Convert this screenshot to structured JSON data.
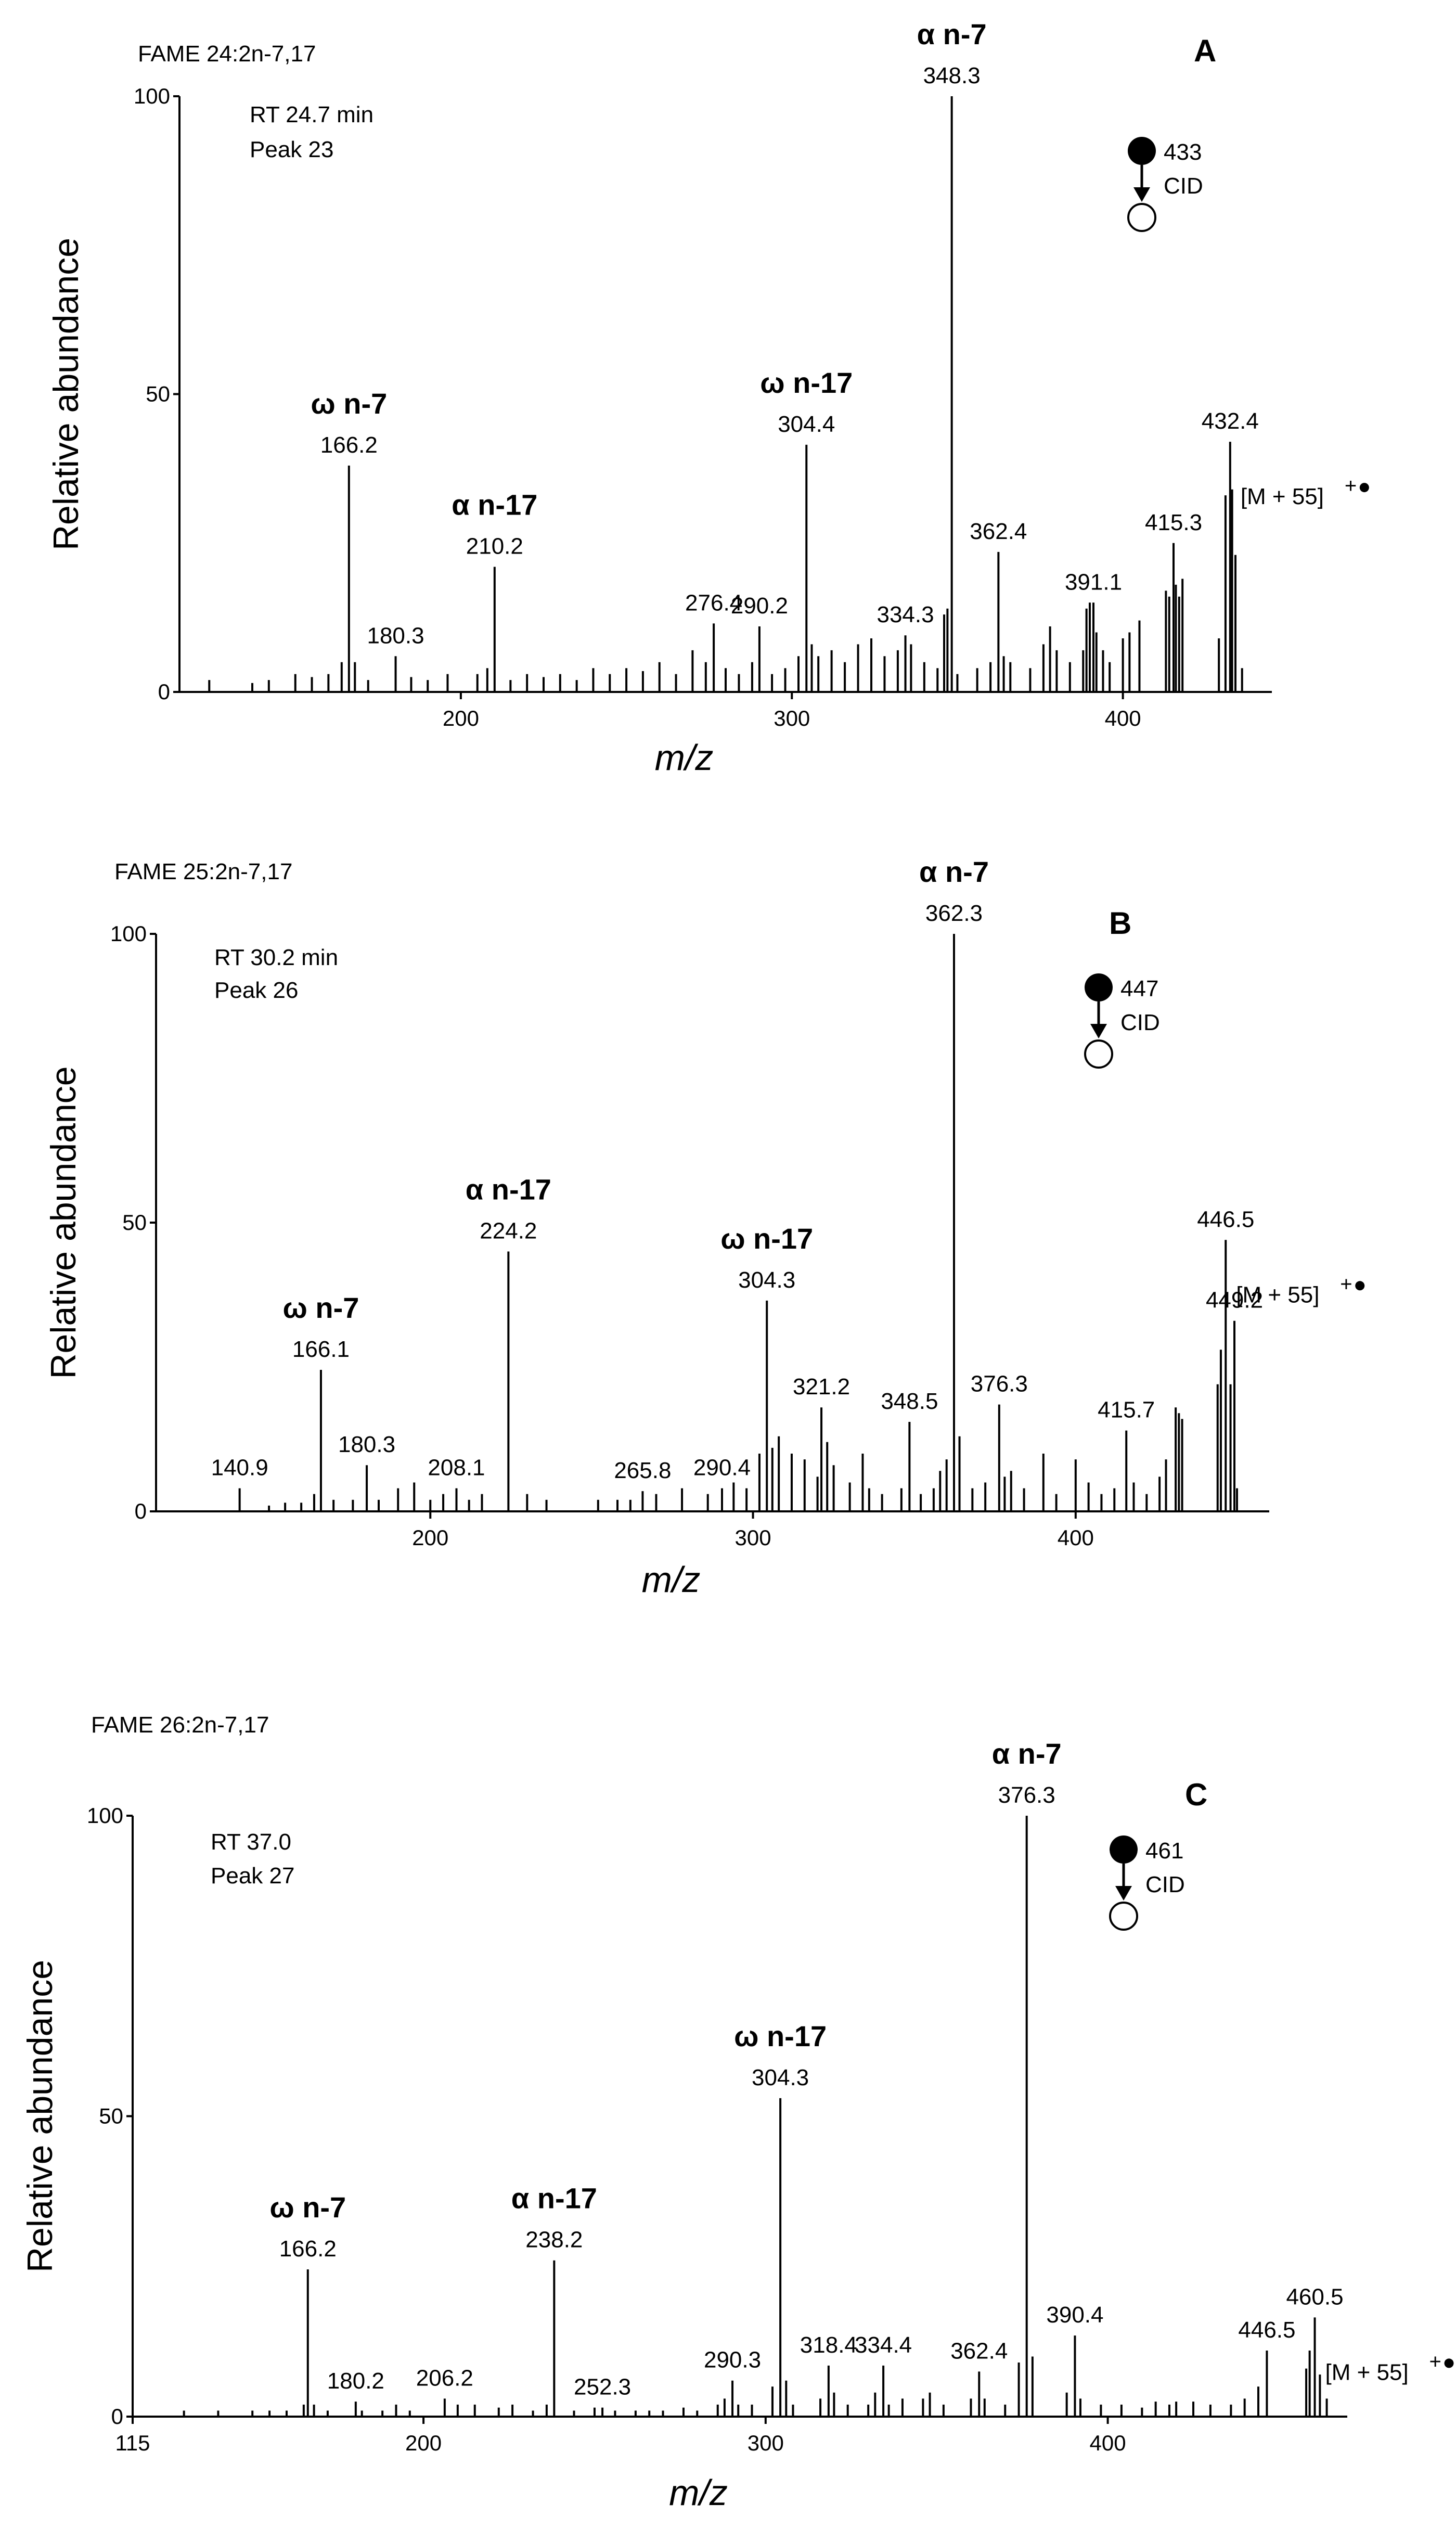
{
  "colors": {
    "ink": "#000000",
    "background": "#ffffff"
  },
  "chart_data": [
    {
      "type": "bar",
      "panel": "A",
      "compound": "FAME 24:2n-7,17",
      "rt": "RT 24.7 min",
      "peak": "Peak 23",
      "precursor": "433",
      "cid": "CID",
      "xlabel": "m/z",
      "ylabel": "Relative abundance",
      "xlim": [
        115,
        445
      ],
      "ylim": [
        0,
        100
      ],
      "xticks": [
        "200",
        "300",
        "400"
      ],
      "yticks": [
        "0",
        "50",
        "100"
      ],
      "ion_label": "[M + 55]",
      "ion_charge": "+",
      "major_peaks": [
        {
          "mz": 166.2,
          "abundance": 38,
          "label": "166.2",
          "annotation": "ω n-7"
        },
        {
          "mz": 180.3,
          "abundance": 6,
          "label": "180.3"
        },
        {
          "mz": 210.2,
          "abundance": 21,
          "label": "210.2",
          "annotation": "α n-17"
        },
        {
          "mz": 276.4,
          "abundance": 11.5,
          "label": "276.4"
        },
        {
          "mz": 290.2,
          "abundance": 11,
          "label": "290.2"
        },
        {
          "mz": 304.4,
          "abundance": 41.5,
          "label": "304.4",
          "annotation": "ω n-17"
        },
        {
          "mz": 334.3,
          "abundance": 9.5,
          "label": "334.3"
        },
        {
          "mz": 348.3,
          "abundance": 100,
          "label": "348.3",
          "annotation": "α n-7"
        },
        {
          "mz": 362.4,
          "abundance": 23.5,
          "label": "362.4"
        },
        {
          "mz": 391.1,
          "abundance": 15,
          "label": "391.1"
        },
        {
          "mz": 415.3,
          "abundance": 25,
          "label": "415.3"
        },
        {
          "mz": 432.4,
          "abundance": 42,
          "label": "432.4"
        }
      ],
      "minor_peaks": [
        [
          124,
          2
        ],
        [
          137,
          1.5
        ],
        [
          142,
          2
        ],
        [
          150,
          3
        ],
        [
          155,
          2.5
        ],
        [
          160,
          3
        ],
        [
          164,
          5
        ],
        [
          168,
          5
        ],
        [
          172,
          2
        ],
        [
          185,
          2.5
        ],
        [
          190,
          2
        ],
        [
          196,
          3
        ],
        [
          205,
          3
        ],
        [
          208,
          4
        ],
        [
          215,
          2
        ],
        [
          220,
          3
        ],
        [
          225,
          2.5
        ],
        [
          230,
          3
        ],
        [
          235,
          2
        ],
        [
          240,
          4
        ],
        [
          245,
          3
        ],
        [
          250,
          4
        ],
        [
          255,
          3.5
        ],
        [
          260,
          5
        ],
        [
          265,
          3
        ],
        [
          270,
          7
        ],
        [
          274,
          5
        ],
        [
          280,
          4
        ],
        [
          284,
          3
        ],
        [
          288,
          5
        ],
        [
          294,
          3
        ],
        [
          298,
          4
        ],
        [
          302,
          6
        ],
        [
          306,
          8
        ],
        [
          308,
          6
        ],
        [
          312,
          7
        ],
        [
          316,
          5
        ],
        [
          320,
          8
        ],
        [
          324,
          9
        ],
        [
          328,
          6
        ],
        [
          332,
          7
        ],
        [
          336,
          8
        ],
        [
          340,
          5
        ],
        [
          344,
          4
        ],
        [
          346,
          13
        ],
        [
          347,
          14
        ],
        [
          350,
          3
        ],
        [
          356,
          4
        ],
        [
          360,
          5
        ],
        [
          364,
          6
        ],
        [
          366,
          5
        ],
        [
          372,
          4
        ],
        [
          376,
          8
        ],
        [
          378,
          11
        ],
        [
          380,
          7
        ],
        [
          384,
          5
        ],
        [
          388,
          7
        ],
        [
          389,
          14
        ],
        [
          390,
          15
        ],
        [
          392,
          10
        ],
        [
          394,
          7
        ],
        [
          396,
          5
        ],
        [
          400,
          9
        ],
        [
          402,
          10
        ],
        [
          405,
          12
        ],
        [
          413,
          17
        ],
        [
          414,
          16
        ],
        [
          416,
          18
        ],
        [
          417,
          16
        ],
        [
          418,
          19
        ],
        [
          429,
          9
        ],
        [
          431,
          33
        ],
        [
          433,
          34
        ],
        [
          434,
          23
        ],
        [
          436,
          4
        ]
      ]
    },
    {
      "type": "bar",
      "panel": "B",
      "compound": "FAME 25:2n-7,17",
      "rt": "RT 30.2 min",
      "peak": "Peak 26",
      "precursor": "447",
      "cid": "CID",
      "xlabel": "m/z",
      "ylabel": "Relative abundance",
      "xlim": [
        115,
        460
      ],
      "ylim": [
        0,
        100
      ],
      "xticks": [
        "200",
        "300",
        "400"
      ],
      "yticks": [
        "0",
        "50",
        "100"
      ],
      "ion_label": "[M + 55]",
      "ion_charge": "+",
      "major_peaks": [
        {
          "mz": 140.9,
          "abundance": 4,
          "label": "140.9"
        },
        {
          "mz": 166.1,
          "abundance": 24.5,
          "label": "166.1",
          "annotation": "ω n-7"
        },
        {
          "mz": 180.3,
          "abundance": 8,
          "label": "180.3"
        },
        {
          "mz": 208.1,
          "abundance": 4,
          "label": "208.1"
        },
        {
          "mz": 224.2,
          "abundance": 45,
          "label": "224.2",
          "annotation": "α n-17"
        },
        {
          "mz": 265.8,
          "abundance": 3.5,
          "label": "265.8"
        },
        {
          "mz": 290.4,
          "abundance": 4,
          "label": "290.4"
        },
        {
          "mz": 304.3,
          "abundance": 36.5,
          "label": "304.3",
          "annotation": "ω n-17"
        },
        {
          "mz": 321.2,
          "abundance": 18,
          "label": "321.2"
        },
        {
          "mz": 348.5,
          "abundance": 15.5,
          "label": "348.5"
        },
        {
          "mz": 362.3,
          "abundance": 100,
          "label": "362.3",
          "annotation": "α n-7"
        },
        {
          "mz": 376.3,
          "abundance": 18.5,
          "label": "376.3"
        },
        {
          "mz": 415.7,
          "abundance": 14,
          "label": "415.7"
        },
        {
          "mz": 449.2,
          "abundance": 33,
          "label": "449.2"
        },
        {
          "mz": 446.5,
          "abundance": 47,
          "label": "446.5"
        }
      ],
      "minor_peaks": [
        [
          150,
          1
        ],
        [
          155,
          1.5
        ],
        [
          160,
          1.5
        ],
        [
          164,
          3
        ],
        [
          170,
          2
        ],
        [
          176,
          2
        ],
        [
          184,
          2
        ],
        [
          190,
          4
        ],
        [
          195,
          5
        ],
        [
          200,
          2
        ],
        [
          204,
          3
        ],
        [
          212,
          2
        ],
        [
          216,
          3
        ],
        [
          230,
          3
        ],
        [
          236,
          2
        ],
        [
          252,
          2
        ],
        [
          258,
          2
        ],
        [
          262,
          2
        ],
        [
          270,
          3
        ],
        [
          278,
          4
        ],
        [
          286,
          3
        ],
        [
          294,
          5
        ],
        [
          298,
          4
        ],
        [
          302,
          10
        ],
        [
          306,
          11
        ],
        [
          308,
          13
        ],
        [
          312,
          10
        ],
        [
          316,
          9
        ],
        [
          320,
          6
        ],
        [
          323,
          12
        ],
        [
          325,
          8
        ],
        [
          330,
          5
        ],
        [
          334,
          10
        ],
        [
          336,
          4
        ],
        [
          340,
          3
        ],
        [
          346,
          4
        ],
        [
          352,
          3
        ],
        [
          356,
          4
        ],
        [
          358,
          7
        ],
        [
          360,
          9
        ],
        [
          364,
          13
        ],
        [
          368,
          4
        ],
        [
          372,
          5
        ],
        [
          378,
          6
        ],
        [
          380,
          7
        ],
        [
          384,
          4
        ],
        [
          390,
          10
        ],
        [
          394,
          3
        ],
        [
          400,
          9
        ],
        [
          404,
          5
        ],
        [
          408,
          3
        ],
        [
          412,
          4
        ],
        [
          418,
          5
        ],
        [
          422,
          3
        ],
        [
          426,
          6
        ],
        [
          428,
          9
        ],
        [
          431,
          18
        ],
        [
          432,
          17
        ],
        [
          433,
          16
        ],
        [
          444,
          22
        ],
        [
          445,
          28
        ],
        [
          448,
          22
        ],
        [
          450,
          4
        ]
      ]
    },
    {
      "type": "bar",
      "panel": "C",
      "compound": "FAME 26:2n-7,17",
      "rt": "RT 37.0",
      "peak": "Peak 27",
      "precursor": "461",
      "cid": "CID",
      "xlabel": "m/z",
      "ylabel": "Relative abundance",
      "xlim": [
        115,
        470
      ],
      "ylim": [
        0,
        100
      ],
      "xticks": [
        "115",
        "200",
        "300",
        "400"
      ],
      "yticks": [
        "0",
        "50",
        "100"
      ],
      "ion_label": "[M + 55]",
      "ion_charge": "+",
      "major_peaks": [
        {
          "mz": 166.2,
          "abundance": 24.5,
          "label": "166.2",
          "annotation": "ω n-7"
        },
        {
          "mz": 180.2,
          "abundance": 2.5,
          "label": "180.2"
        },
        {
          "mz": 206.2,
          "abundance": 3,
          "label": "206.2"
        },
        {
          "mz": 238.2,
          "abundance": 26,
          "label": "238.2",
          "annotation": "α n-17"
        },
        {
          "mz": 252.3,
          "abundance": 1.5,
          "label": "252.3"
        },
        {
          "mz": 290.3,
          "abundance": 6,
          "label": "290.3"
        },
        {
          "mz": 304.3,
          "abundance": 53,
          "label": "304.3",
          "annotation": "ω n-17"
        },
        {
          "mz": 318.4,
          "abundance": 8.5,
          "label": "318.4"
        },
        {
          "mz": 334.4,
          "abundance": 8.5,
          "label": "334.4"
        },
        {
          "mz": 362.4,
          "abundance": 7.5,
          "label": "362.4"
        },
        {
          "mz": 376.3,
          "abundance": 100,
          "label": "376.3",
          "annotation": "α n-7"
        },
        {
          "mz": 390.4,
          "abundance": 13.5,
          "label": "390.4"
        },
        {
          "mz": 446.5,
          "abundance": 11,
          "label": "446.5"
        },
        {
          "mz": 460.5,
          "abundance": 16.5,
          "label": "460.5"
        }
      ],
      "minor_peaks": [
        [
          130,
          1
        ],
        [
          140,
          1
        ],
        [
          150,
          1
        ],
        [
          155,
          1
        ],
        [
          160,
          1
        ],
        [
          165,
          2
        ],
        [
          168,
          2
        ],
        [
          172,
          1
        ],
        [
          182,
          1
        ],
        [
          188,
          1
        ],
        [
          192,
          2
        ],
        [
          196,
          1
        ],
        [
          210,
          2
        ],
        [
          215,
          2
        ],
        [
          222,
          1.5
        ],
        [
          226,
          2
        ],
        [
          232,
          1
        ],
        [
          236,
          2
        ],
        [
          244,
          1
        ],
        [
          250,
          1.5
        ],
        [
          256,
          1
        ],
        [
          262,
          1
        ],
        [
          266,
          1
        ],
        [
          270,
          1
        ],
        [
          276,
          1.5
        ],
        [
          280,
          1
        ],
        [
          286,
          2
        ],
        [
          288,
          3
        ],
        [
          292,
          2
        ],
        [
          296,
          2
        ],
        [
          302,
          5
        ],
        [
          306,
          6
        ],
        [
          308,
          2
        ],
        [
          316,
          3
        ],
        [
          320,
          4
        ],
        [
          324,
          2
        ],
        [
          330,
          2
        ],
        [
          332,
          4
        ],
        [
          336,
          2
        ],
        [
          340,
          3
        ],
        [
          346,
          3
        ],
        [
          348,
          4
        ],
        [
          352,
          2
        ],
        [
          360,
          3
        ],
        [
          364,
          3
        ],
        [
          370,
          2
        ],
        [
          374,
          9
        ],
        [
          378,
          10
        ],
        [
          388,
          4
        ],
        [
          392,
          3
        ],
        [
          398,
          2
        ],
        [
          404,
          2
        ],
        [
          410,
          1.5
        ],
        [
          414,
          2.5
        ],
        [
          418,
          2
        ],
        [
          420,
          2.5
        ],
        [
          425,
          2.5
        ],
        [
          430,
          2
        ],
        [
          436,
          2
        ],
        [
          440,
          3
        ],
        [
          444,
          5
        ],
        [
          458,
          8
        ],
        [
          459,
          11
        ],
        [
          462,
          7
        ],
        [
          464,
          3
        ]
      ]
    }
  ]
}
